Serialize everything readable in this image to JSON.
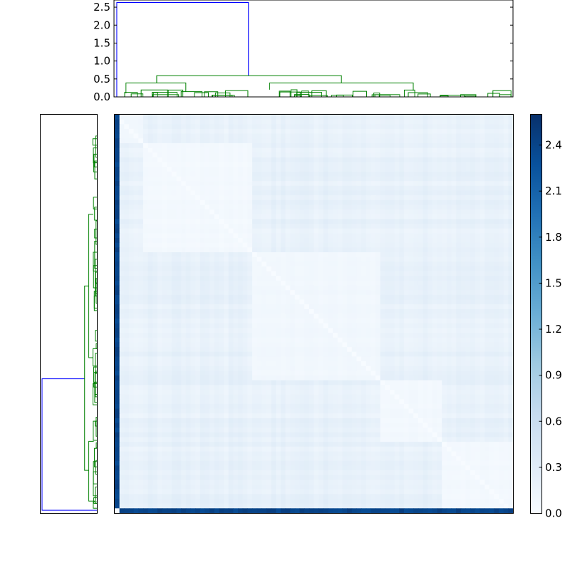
{
  "chart_data": [
    {
      "type": "heatmap",
      "role": "distance-matrix",
      "n": 84,
      "colormap": "Blues",
      "vmin": 0.0,
      "vmax": 2.6,
      "outlier_value": 2.4,
      "block_boundaries_fraction": [
        0.07,
        0.34,
        0.67,
        0.82,
        1.0
      ],
      "block_base_values": [
        0.12,
        0.05,
        0.12,
        0.07
      ],
      "within_block_max": 0.3
    },
    {
      "type": "dendrogram",
      "position": "top",
      "ylim": [
        0,
        2.7
      ],
      "yticks": [
        "0.0",
        "0.5",
        "1.0",
        "1.5",
        "2.0",
        "2.5"
      ],
      "yticks_values": [
        0.0,
        0.5,
        1.0,
        1.5,
        2.0,
        2.5
      ],
      "root_height": 2.63,
      "main_split_heights": [
        0.59,
        0.39
      ],
      "colors": {
        "root": "#0000ff",
        "clusters": "#008000"
      }
    },
    {
      "type": "dendrogram",
      "position": "left",
      "root_height": 2.63,
      "colors": {
        "root": "#0000ff",
        "clusters": "#008000"
      }
    },
    {
      "type": "colorbar",
      "range": [
        0.0,
        2.6
      ],
      "ticks": [
        "0.0",
        "0.3",
        "0.6",
        "0.9",
        "1.2",
        "1.5",
        "1.8",
        "2.1",
        "2.4"
      ],
      "tick_values": [
        0.0,
        0.3,
        0.6,
        0.9,
        1.2,
        1.5,
        1.8,
        2.1,
        2.4
      ]
    }
  ]
}
